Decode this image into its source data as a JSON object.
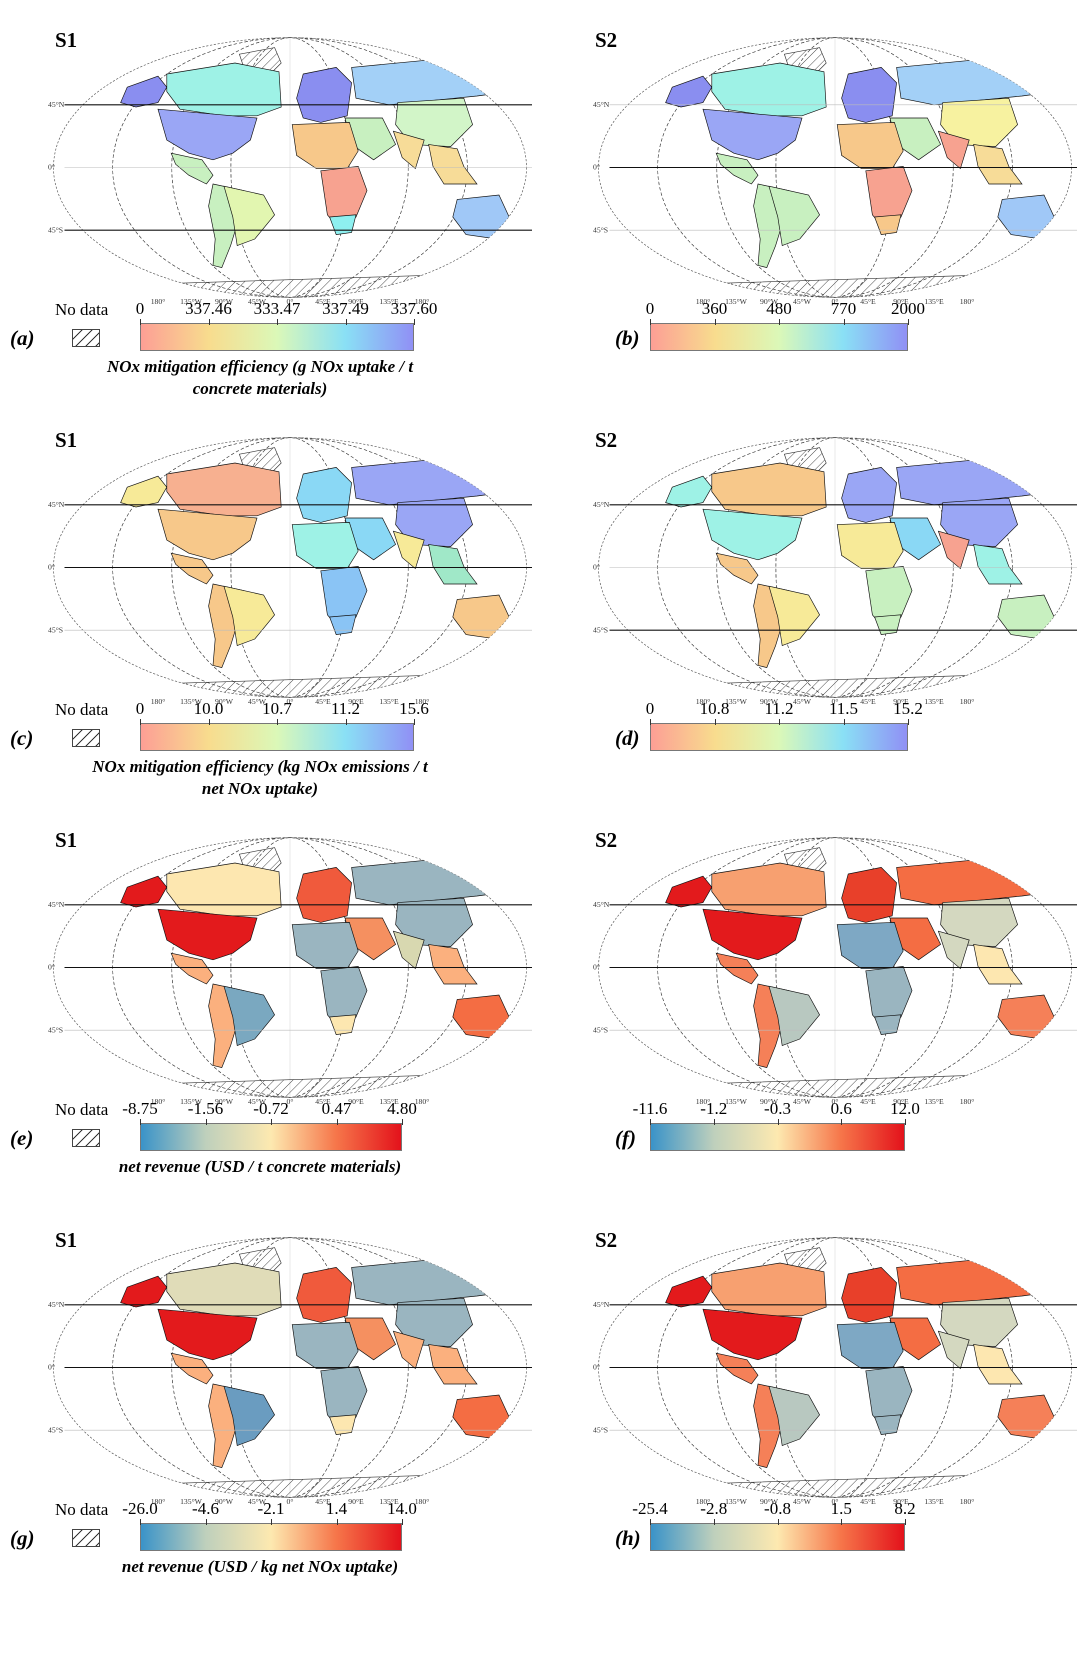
{
  "figure": {
    "lon_ticks": [
      "180°",
      "135°W",
      "90°W",
      "45°W",
      "0°",
      "45°E",
      "90°E",
      "135°E",
      "180°"
    ],
    "lat_ticks": [
      "45°N",
      "0°",
      "45°S"
    ],
    "no_data_label": "No data",
    "panels": [
      {
        "id": "a",
        "label": "(a)",
        "scenario": "S1",
        "palette": "rainbow",
        "ticks": [
          "0",
          "337.46",
          "333.47",
          "337.49",
          "337.60"
        ],
        "show_nodata": true,
        "colorbar_title": "NOx mitigation efficiency (g NOx uptake / t concrete materials)",
        "regions": {
          "north_america": "#9aa6f5",
          "canada": "#9ef2e6",
          "latin_america": "#c8f0c0",
          "brazil": "#e2f6b0",
          "europe": "#8a8ef0",
          "russia": "#a3d0f7",
          "china": "#d2f5c8",
          "middle_east": "#c8f0c0",
          "india": "#f7dc98",
          "north_africa": "#f7c88a",
          "sub_africa": "#f7a290",
          "south_africa": "#8ef0f0",
          "se_asia": "#f7dc98",
          "australia": "#a0c8f7",
          "alaska": "#8a8ef0"
        }
      },
      {
        "id": "b",
        "label": "(b)",
        "scenario": "S2",
        "palette": "rainbow",
        "ticks": [
          "0",
          "360",
          "480",
          "770",
          "2000"
        ],
        "show_nodata": false,
        "regions": {
          "north_america": "#9aa6f5",
          "canada": "#9ef2e6",
          "latin_america": "#c8f0c0",
          "brazil": "#c8f0c0",
          "europe": "#8a8ef0",
          "russia": "#a3d0f7",
          "china": "#f7f2a0",
          "middle_east": "#c8f0c0",
          "india": "#f7a290",
          "north_africa": "#f7c88a",
          "sub_africa": "#f7a290",
          "south_africa": "#f7c88a",
          "se_asia": "#f7dc98",
          "australia": "#a0c8f7",
          "alaska": "#8a8ef0"
        }
      },
      {
        "id": "c",
        "label": "(c)",
        "scenario": "S1",
        "palette": "rainbow",
        "ticks": [
          "0",
          "10.0",
          "10.7",
          "11.2",
          "15.6"
        ],
        "show_nodata": true,
        "colorbar_title": "NOx mitigation efficiency (kg NOx emissions / t net NOx uptake)",
        "regions": {
          "north_america": "#f7c88a",
          "canada": "#f7b090",
          "latin_america": "#f7c88a",
          "brazil": "#f7ea98",
          "europe": "#8ad8f5",
          "russia": "#9aa6f5",
          "china": "#9aa6f5",
          "middle_east": "#8ad8f5",
          "india": "#f7ea98",
          "north_africa": "#9ef2e6",
          "sub_africa": "#8ac4f5",
          "south_africa": "#8ac4f5",
          "se_asia": "#a0e8c8",
          "australia": "#f7c88a",
          "alaska": "#f7ea98"
        }
      },
      {
        "id": "d",
        "label": "(d)",
        "scenario": "S2",
        "palette": "rainbow",
        "ticks": [
          "0",
          "10.8",
          "11.2",
          "11.5",
          "15.2"
        ],
        "show_nodata": false,
        "regions": {
          "north_america": "#9ef2e6",
          "canada": "#f7c88a",
          "latin_america": "#f7c88a",
          "brazil": "#f7ea98",
          "europe": "#9aa6f5",
          "russia": "#9aa6f5",
          "china": "#9aa6f5",
          "middle_east": "#8ad8f5",
          "india": "#f7a290",
          "north_africa": "#f7ea98",
          "sub_africa": "#c8f0c0",
          "south_africa": "#c8f0c0",
          "se_asia": "#9ef2e6",
          "australia": "#c8f0c0",
          "alaska": "#9ef2e6"
        }
      },
      {
        "id": "e",
        "label": "(e)",
        "scenario": "S1",
        "palette": "diverging",
        "ticks": [
          "-8.75",
          "-1.56",
          "-0.72",
          "0.47",
          "4.80"
        ],
        "show_nodata": true,
        "colorbar_title": "net revenue (USD / t concrete materials)",
        "regions": {
          "north_america": "#e31a1c",
          "canada": "#fde7b0",
          "latin_america": "#fbb07e",
          "brazil": "#7aa8c0",
          "europe": "#f05a3c",
          "russia": "#9ab5c0",
          "china": "#9ab5c0",
          "middle_east": "#f59060",
          "india": "#d8d8b0",
          "north_africa": "#9ab5c0",
          "sub_africa": "#9ab5c0",
          "south_africa": "#fde7b0",
          "se_asia": "#fbb07e",
          "australia": "#f46d43",
          "alaska": "#e31a1c"
        }
      },
      {
        "id": "f",
        "label": "(f)",
        "scenario": "S2",
        "palette": "diverging",
        "ticks": [
          "-11.6",
          "-1.2",
          "-0.3",
          "0.6",
          "12.0"
        ],
        "show_nodata": false,
        "regions": {
          "north_america": "#e31a1c",
          "canada": "#f7a070",
          "latin_america": "#f58058",
          "brazil": "#b8c8c0",
          "europe": "#e8402a",
          "russia": "#f46d43",
          "china": "#d4d8c0",
          "middle_east": "#f46d43",
          "india": "#d4d8c0",
          "north_africa": "#7ea8c4",
          "sub_africa": "#9ab5c0",
          "south_africa": "#9ab5c0",
          "se_asia": "#fde7b0",
          "australia": "#f58058",
          "alaska": "#e31a1c"
        }
      },
      {
        "id": "g",
        "label": "(g)",
        "scenario": "S1",
        "palette": "diverging",
        "ticks": [
          "-26.0",
          "-4.6",
          "-2.1",
          "1.4",
          "14.0"
        ],
        "show_nodata": true,
        "colorbar_title": "net revenue (USD / kg net NOx uptake)",
        "regions": {
          "north_america": "#e31a1c",
          "canada": "#e0dcb8",
          "latin_america": "#fbb07e",
          "brazil": "#6a9cc0",
          "europe": "#f05a3c",
          "russia": "#9ab5c0",
          "china": "#9ab5c0",
          "middle_east": "#f59060",
          "india": "#fbb07e",
          "north_africa": "#9ab5c0",
          "sub_africa": "#9ab5c0",
          "south_africa": "#fde7b0",
          "se_asia": "#fbb07e",
          "australia": "#f46d43",
          "alaska": "#e31a1c"
        }
      },
      {
        "id": "h",
        "label": "(h)",
        "scenario": "S2",
        "palette": "diverging",
        "ticks": [
          "-25.4",
          "-2.8",
          "-0.8",
          "1.5",
          "8.2"
        ],
        "show_nodata": false,
        "regions": {
          "north_america": "#e31a1c",
          "canada": "#f7a070",
          "latin_america": "#f58058",
          "brazil": "#b8c8c0",
          "europe": "#e8402a",
          "russia": "#f46d43",
          "china": "#d4d8c0",
          "middle_east": "#f46d43",
          "india": "#d4d8c0",
          "north_africa": "#7ea8c4",
          "sub_africa": "#9ab5c0",
          "south_africa": "#9ab5c0",
          "se_asia": "#fde7b0",
          "australia": "#f58058",
          "alaska": "#e31a1c"
        }
      }
    ],
    "palettes": {
      "rainbow": [
        "#fc9f95",
        "#f8dc8e",
        "#dbf8b8",
        "#8ae0f5",
        "#9090f5"
      ],
      "diverging": [
        "#3a93c8",
        "#bfd0bc",
        "#fde9b0",
        "#f6764a",
        "#e3121b"
      ]
    }
  },
  "chart_data": [
    {
      "type": "heatmap",
      "title": "S1 (a)",
      "ticks": [
        0,
        337.46,
        333.47,
        337.49,
        337.6
      ],
      "colorbar_label": "NOx mitigation efficiency (g NOx uptake / t concrete materials)"
    },
    {
      "type": "heatmap",
      "title": "S2 (b)",
      "ticks": [
        0,
        360,
        480,
        770,
        2000
      ],
      "colorbar_label": "NOx mitigation efficiency (g NOx uptake / t concrete materials)"
    },
    {
      "type": "heatmap",
      "title": "S1 (c)",
      "ticks": [
        0,
        10.0,
        10.7,
        11.2,
        15.6
      ],
      "colorbar_label": "NOx mitigation efficiency (kg NOx emissions / t net NOx uptake)"
    },
    {
      "type": "heatmap",
      "title": "S2 (d)",
      "ticks": [
        0,
        10.8,
        11.2,
        11.5,
        15.2
      ],
      "colorbar_label": "NOx mitigation efficiency (kg NOx emissions / t net NOx uptake)"
    },
    {
      "type": "heatmap",
      "title": "S1 (e)",
      "ticks": [
        -8.75,
        -1.56,
        -0.72,
        0.47,
        4.8
      ],
      "colorbar_label": "net revenue (USD / t concrete materials)"
    },
    {
      "type": "heatmap",
      "title": "S2 (f)",
      "ticks": [
        -11.6,
        -1.2,
        -0.3,
        0.6,
        12.0
      ],
      "colorbar_label": "net revenue (USD / t concrete materials)"
    },
    {
      "type": "heatmap",
      "title": "S1 (g)",
      "ticks": [
        -26.0,
        -4.6,
        -2.1,
        1.4,
        14.0
      ],
      "colorbar_label": "net revenue (USD / kg net NOx uptake)"
    },
    {
      "type": "heatmap",
      "title": "S2 (h)",
      "ticks": [
        -25.4,
        -2.8,
        -0.8,
        1.5,
        8.2
      ],
      "colorbar_label": "net revenue (USD / kg net NOx uptake)"
    }
  ]
}
